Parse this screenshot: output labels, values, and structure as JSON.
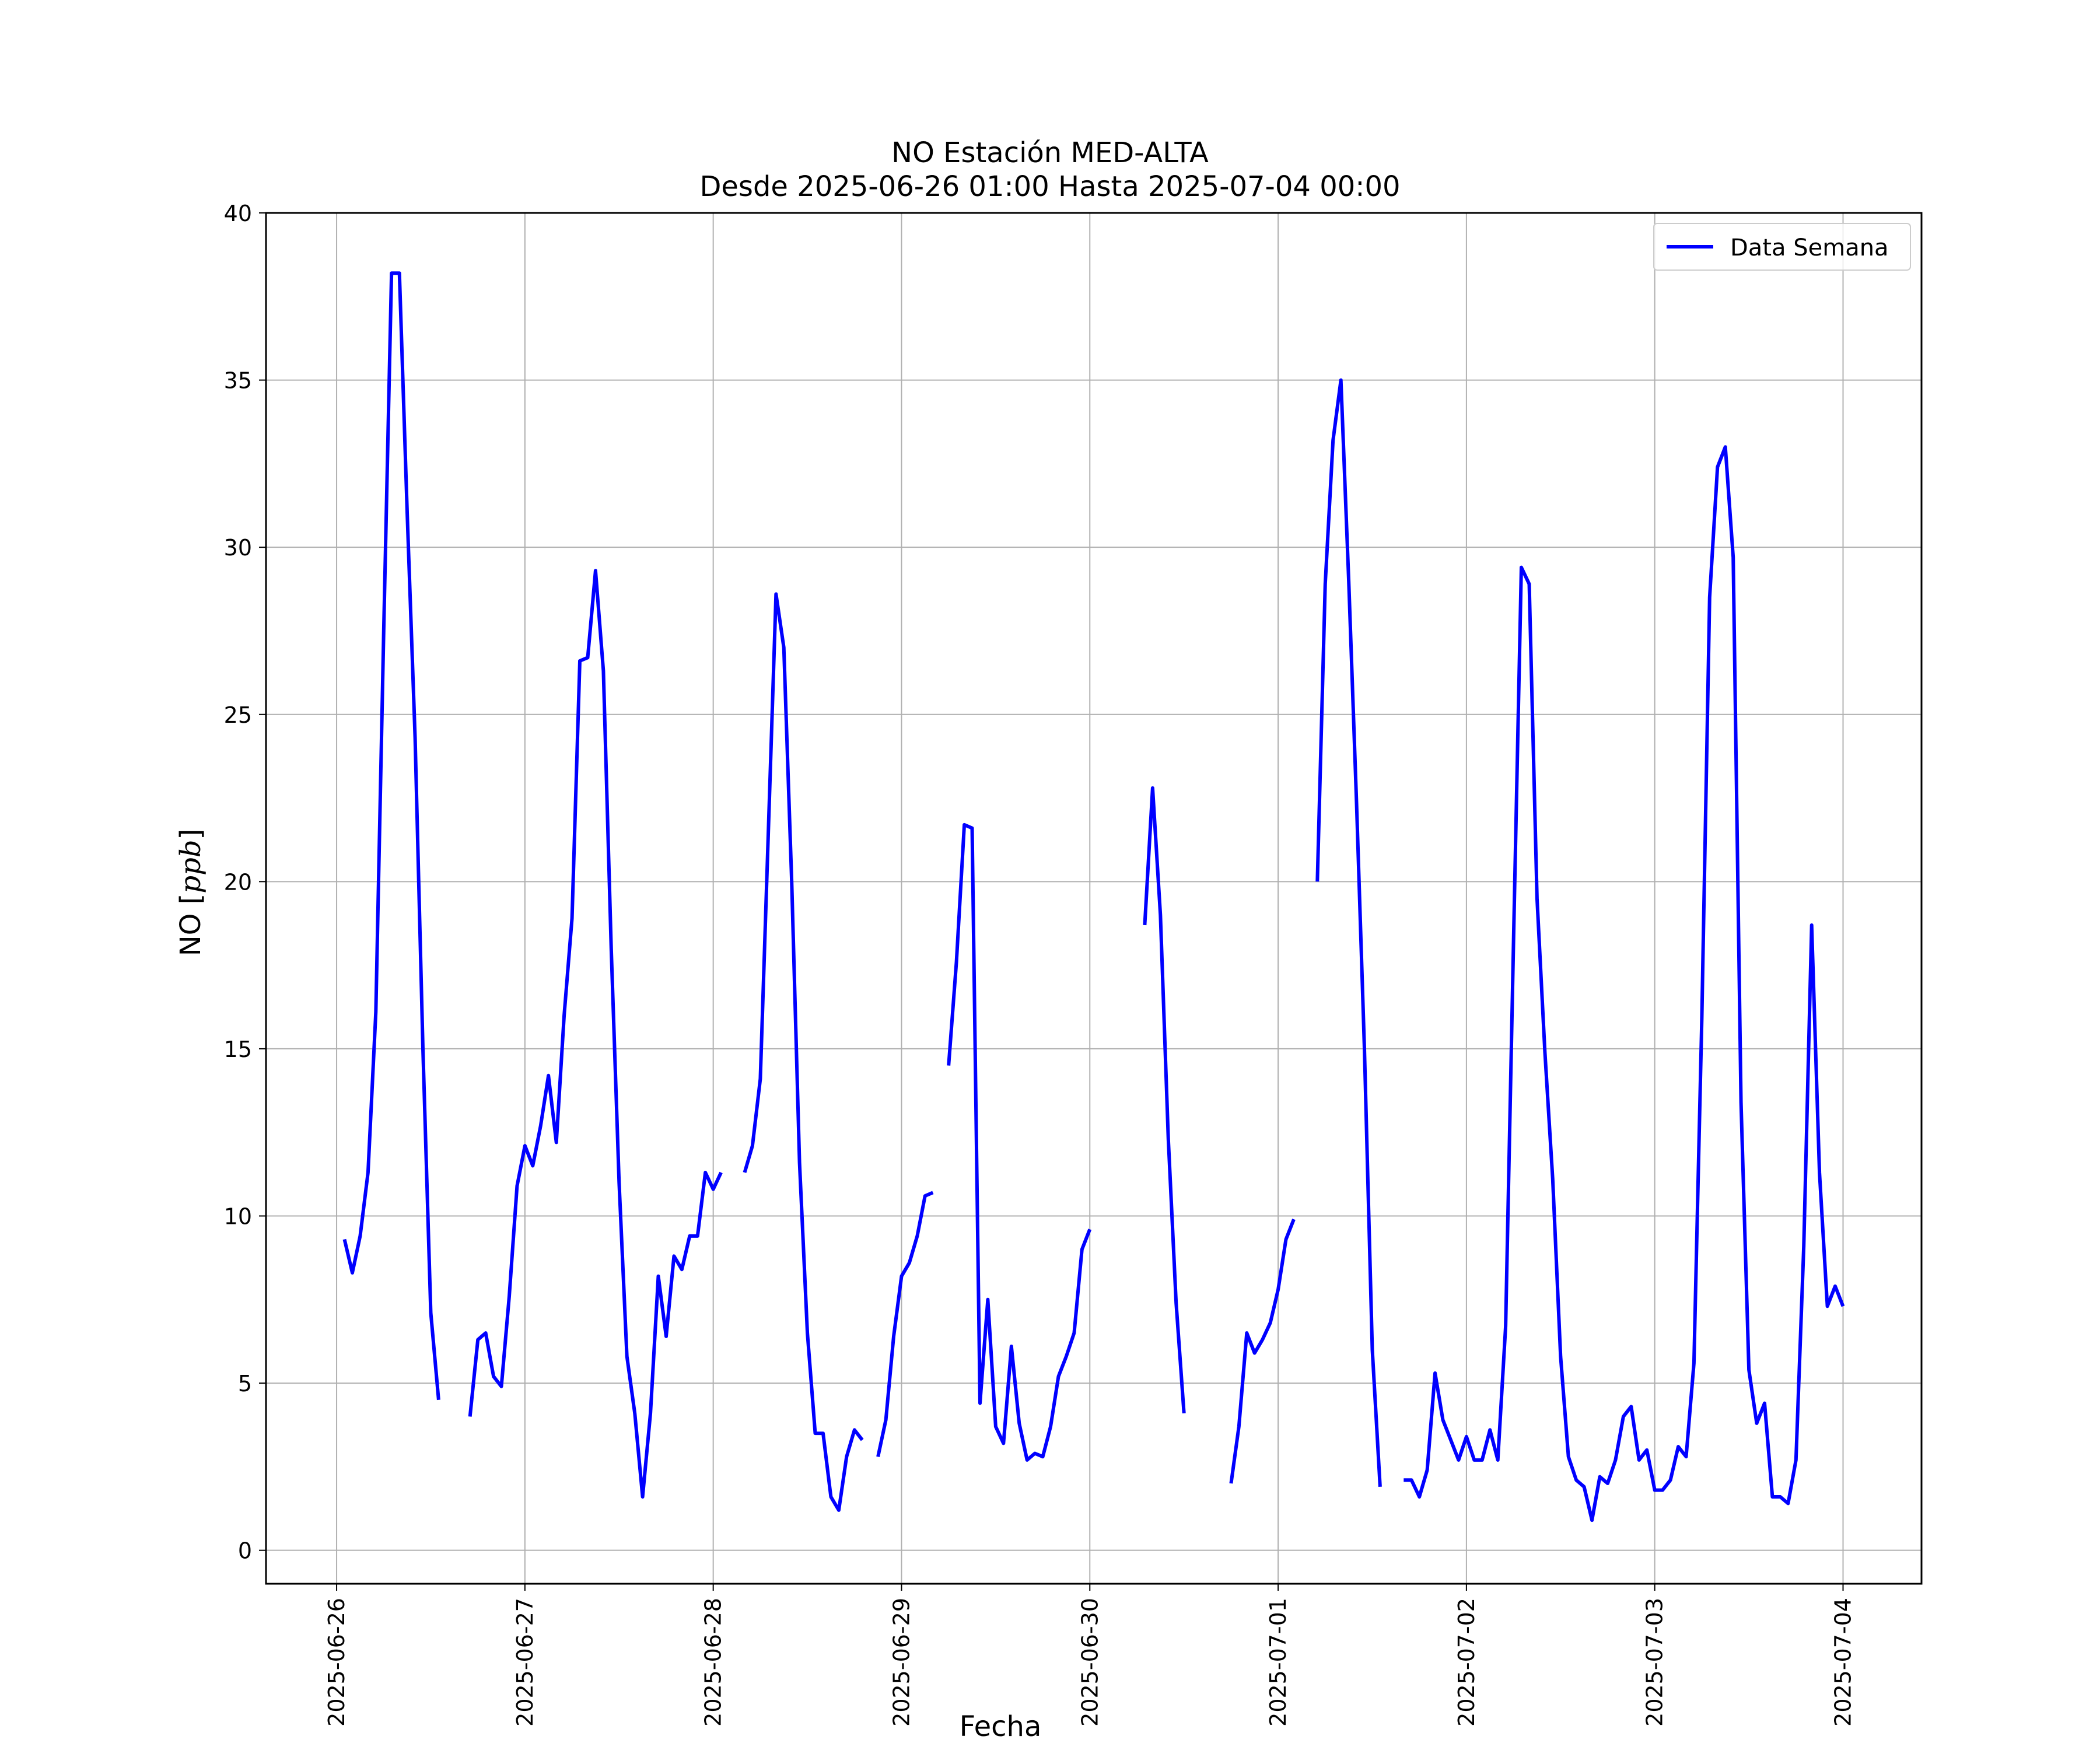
{
  "chart_data": {
    "type": "line",
    "title": "NO Estación MED-ALTA",
    "subtitle": "Desde 2025-06-26 01:00 Hasta 2025-07-04 00:00",
    "xlabel": "Fecha",
    "ylabel_prefix": "NO [",
    "ylabel_unit": "ppb",
    "ylabel_suffix": "]",
    "ylim": [
      -1,
      40
    ],
    "xlim": [
      "2025-06-25 15:00",
      "2025-07-04 10:00"
    ],
    "yticks": [
      0,
      5,
      10,
      15,
      20,
      25,
      30,
      35,
      40
    ],
    "xticks": [
      "2025-06-26",
      "2025-06-27",
      "2025-06-28",
      "2025-06-29",
      "2025-06-30",
      "2025-07-01",
      "2025-07-02",
      "2025-07-03",
      "2025-07-04"
    ],
    "grid": true,
    "legend_position": "top-right",
    "series": [
      {
        "name": "Data Semana",
        "color": "#0000ff",
        "segments": [
          [
            [
              "2025-06-26 01:00",
              9.3
            ],
            [
              "2025-06-26 02:00",
              8.3
            ],
            [
              "2025-06-26 03:00",
              9.4
            ],
            [
              "2025-06-26 04:00",
              11.3
            ],
            [
              "2025-06-26 05:00",
              16.1
            ],
            [
              "2025-06-26 06:00",
              27.5
            ],
            [
              "2025-06-26 07:00",
              38.2
            ],
            [
              "2025-06-26 08:00",
              38.2
            ],
            [
              "2025-06-26 09:00",
              31.0
            ],
            [
              "2025-06-26 10:00",
              24.3
            ],
            [
              "2025-06-26 11:00",
              15.0
            ],
            [
              "2025-06-26 12:00",
              7.1
            ],
            [
              "2025-06-26 13:00",
              4.5
            ]
          ],
          [
            [
              "2025-06-26 17:00",
              4.0
            ],
            [
              "2025-06-26 18:00",
              6.3
            ],
            [
              "2025-06-26 19:00",
              6.5
            ],
            [
              "2025-06-26 20:00",
              5.2
            ],
            [
              "2025-06-26 21:00",
              4.9
            ],
            [
              "2025-06-26 22:00",
              7.6
            ],
            [
              "2025-06-26 23:00",
              10.9
            ],
            [
              "2025-06-27 00:00",
              12.1
            ],
            [
              "2025-06-27 01:00",
              11.5
            ],
            [
              "2025-06-27 02:00",
              12.7
            ],
            [
              "2025-06-27 03:00",
              14.2
            ],
            [
              "2025-06-27 04:00",
              12.2
            ],
            [
              "2025-06-27 05:00",
              16.0
            ],
            [
              "2025-06-27 06:00",
              18.9
            ],
            [
              "2025-06-27 07:00",
              26.6
            ],
            [
              "2025-06-27 08:00",
              26.7
            ],
            [
              "2025-06-27 09:00",
              29.3
            ],
            [
              "2025-06-27 10:00",
              26.3
            ],
            [
              "2025-06-27 11:00",
              18.0
            ],
            [
              "2025-06-27 12:00",
              11.0
            ],
            [
              "2025-06-27 13:00",
              5.8
            ],
            [
              "2025-06-27 14:00",
              4.1
            ],
            [
              "2025-06-27 15:00",
              1.6
            ],
            [
              "2025-06-27 16:00",
              4.1
            ],
            [
              "2025-06-27 17:00",
              8.2
            ],
            [
              "2025-06-27 18:00",
              6.4
            ],
            [
              "2025-06-27 19:00",
              8.8
            ],
            [
              "2025-06-27 20:00",
              8.4
            ],
            [
              "2025-06-27 21:00",
              9.4
            ],
            [
              "2025-06-27 22:00",
              9.4
            ],
            [
              "2025-06-27 23:00",
              11.3
            ],
            [
              "2025-06-28 00:00",
              10.8
            ],
            [
              "2025-06-28 01:00",
              11.3
            ]
          ],
          [
            [
              "2025-06-28 04:00",
              11.3
            ],
            [
              "2025-06-28 05:00",
              12.1
            ],
            [
              "2025-06-28 06:00",
              14.1
            ],
            [
              "2025-06-28 07:00",
              21.3
            ],
            [
              "2025-06-28 08:00",
              28.6
            ],
            [
              "2025-06-28 09:00",
              27.0
            ],
            [
              "2025-06-28 10:00",
              20.0
            ],
            [
              "2025-06-28 11:00",
              11.6
            ],
            [
              "2025-06-28 12:00",
              6.5
            ],
            [
              "2025-06-28 13:00",
              3.5
            ],
            [
              "2025-06-28 14:00",
              3.5
            ],
            [
              "2025-06-28 15:00",
              1.6
            ],
            [
              "2025-06-28 16:00",
              1.2
            ],
            [
              "2025-06-28 17:00",
              2.8
            ],
            [
              "2025-06-28 18:00",
              3.6
            ],
            [
              "2025-06-28 19:00",
              3.3
            ]
          ],
          [
            [
              "2025-06-28 21:00",
              2.8
            ],
            [
              "2025-06-28 22:00",
              3.9
            ],
            [
              "2025-06-28 23:00",
              6.4
            ],
            [
              "2025-06-29 00:00",
              8.2
            ],
            [
              "2025-06-29 01:00",
              8.6
            ],
            [
              "2025-06-29 02:00",
              9.4
            ],
            [
              "2025-06-29 03:00",
              10.6
            ],
            [
              "2025-06-29 04:00",
              10.7
            ]
          ],
          [
            [
              "2025-06-29 06:00",
              14.5
            ],
            [
              "2025-06-29 07:00",
              17.6
            ],
            [
              "2025-06-29 08:00",
              21.7
            ],
            [
              "2025-06-29 09:00",
              21.6
            ],
            [
              "2025-06-29 10:00",
              4.4
            ],
            [
              "2025-06-29 11:00",
              7.5
            ],
            [
              "2025-06-29 12:00",
              3.7
            ],
            [
              "2025-06-29 13:00",
              3.2
            ],
            [
              "2025-06-29 14:00",
              6.1
            ],
            [
              "2025-06-29 15:00",
              3.8
            ],
            [
              "2025-06-29 16:00",
              2.7
            ],
            [
              "2025-06-29 17:00",
              2.9
            ],
            [
              "2025-06-29 18:00",
              2.8
            ],
            [
              "2025-06-29 19:00",
              3.7
            ],
            [
              "2025-06-29 20:00",
              5.2
            ],
            [
              "2025-06-29 21:00",
              5.8
            ],
            [
              "2025-06-29 22:00",
              6.5
            ],
            [
              "2025-06-29 23:00",
              9.0
            ],
            [
              "2025-06-30 00:00",
              9.6
            ]
          ],
          [
            [
              "2025-06-30 07:00",
              18.7
            ],
            [
              "2025-06-30 08:00",
              22.8
            ],
            [
              "2025-06-30 09:00",
              19.0
            ],
            [
              "2025-06-30 10:00",
              12.3
            ],
            [
              "2025-06-30 11:00",
              7.4
            ],
            [
              "2025-06-30 12:00",
              4.1
            ]
          ],
          [
            [
              "2025-06-30 18:00",
              2.0
            ],
            [
              "2025-06-30 19:00",
              3.7
            ],
            [
              "2025-06-30 20:00",
              6.5
            ],
            [
              "2025-06-30 21:00",
              5.9
            ],
            [
              "2025-06-30 22:00",
              6.3
            ],
            [
              "2025-06-30 23:00",
              6.8
            ],
            [
              "2025-07-01 00:00",
              7.8
            ],
            [
              "2025-07-01 01:00",
              9.3
            ],
            [
              "2025-07-01 02:00",
              9.9
            ]
          ],
          [
            [
              "2025-07-01 05:00",
              20.0
            ],
            [
              "2025-07-01 06:00",
              28.9
            ],
            [
              "2025-07-01 07:00",
              33.2
            ],
            [
              "2025-07-01 08:00",
              35.0
            ],
            [
              "2025-07-01 09:00",
              29.0
            ],
            [
              "2025-07-01 10:00",
              22.3
            ],
            [
              "2025-07-01 11:00",
              15.0
            ],
            [
              "2025-07-01 12:00",
              6.0
            ],
            [
              "2025-07-01 13:00",
              1.9
            ]
          ],
          [
            [
              "2025-07-01 16:00",
              2.1
            ],
            [
              "2025-07-01 17:00",
              2.1
            ],
            [
              "2025-07-01 18:00",
              1.6
            ],
            [
              "2025-07-01 19:00",
              2.4
            ],
            [
              "2025-07-01 20:00",
              5.3
            ],
            [
              "2025-07-01 21:00",
              3.9
            ],
            [
              "2025-07-01 22:00",
              3.3
            ],
            [
              "2025-07-01 23:00",
              2.7
            ],
            [
              "2025-07-02 00:00",
              3.4
            ],
            [
              "2025-07-02 01:00",
              2.7
            ],
            [
              "2025-07-02 02:00",
              2.7
            ],
            [
              "2025-07-02 03:00",
              3.6
            ],
            [
              "2025-07-02 04:00",
              2.7
            ],
            [
              "2025-07-02 05:00",
              6.7
            ],
            [
              "2025-07-02 06:00",
              18.2
            ],
            [
              "2025-07-02 07:00",
              29.4
            ],
            [
              "2025-07-02 08:00",
              28.9
            ],
            [
              "2025-07-02 09:00",
              19.5
            ],
            [
              "2025-07-02 10:00",
              14.9
            ],
            [
              "2025-07-02 11:00",
              11.1
            ],
            [
              "2025-07-02 12:00",
              5.8
            ],
            [
              "2025-07-02 13:00",
              2.8
            ],
            [
              "2025-07-02 14:00",
              2.1
            ],
            [
              "2025-07-02 15:00",
              1.9
            ],
            [
              "2025-07-02 16:00",
              0.9
            ],
            [
              "2025-07-02 17:00",
              2.2
            ],
            [
              "2025-07-02 18:00",
              2.0
            ],
            [
              "2025-07-02 19:00",
              2.7
            ],
            [
              "2025-07-02 20:00",
              4.0
            ],
            [
              "2025-07-02 21:00",
              4.3
            ],
            [
              "2025-07-02 22:00",
              2.7
            ],
            [
              "2025-07-02 23:00",
              3.0
            ],
            [
              "2025-07-03 00:00",
              1.8
            ],
            [
              "2025-07-03 01:00",
              1.8
            ],
            [
              "2025-07-03 02:00",
              2.1
            ],
            [
              "2025-07-03 03:00",
              3.1
            ],
            [
              "2025-07-03 04:00",
              2.8
            ],
            [
              "2025-07-03 05:00",
              5.6
            ],
            [
              "2025-07-03 06:00",
              15.9
            ],
            [
              "2025-07-03 07:00",
              28.5
            ],
            [
              "2025-07-03 08:00",
              32.4
            ],
            [
              "2025-07-03 09:00",
              33.0
            ],
            [
              "2025-07-03 10:00",
              29.7
            ],
            [
              "2025-07-03 11:00",
              13.4
            ],
            [
              "2025-07-03 12:00",
              5.4
            ],
            [
              "2025-07-03 13:00",
              3.8
            ],
            [
              "2025-07-03 14:00",
              4.4
            ],
            [
              "2025-07-03 15:00",
              1.6
            ],
            [
              "2025-07-03 16:00",
              1.6
            ],
            [
              "2025-07-03 17:00",
              1.4
            ],
            [
              "2025-07-03 18:00",
              2.7
            ],
            [
              "2025-07-03 19:00",
              9.1
            ],
            [
              "2025-07-03 20:00",
              18.7
            ],
            [
              "2025-07-03 21:00",
              11.3
            ],
            [
              "2025-07-03 22:00",
              7.3
            ],
            [
              "2025-07-03 23:00",
              7.9
            ],
            [
              "2025-07-04 00:00",
              7.3
            ]
          ]
        ]
      }
    ]
  }
}
